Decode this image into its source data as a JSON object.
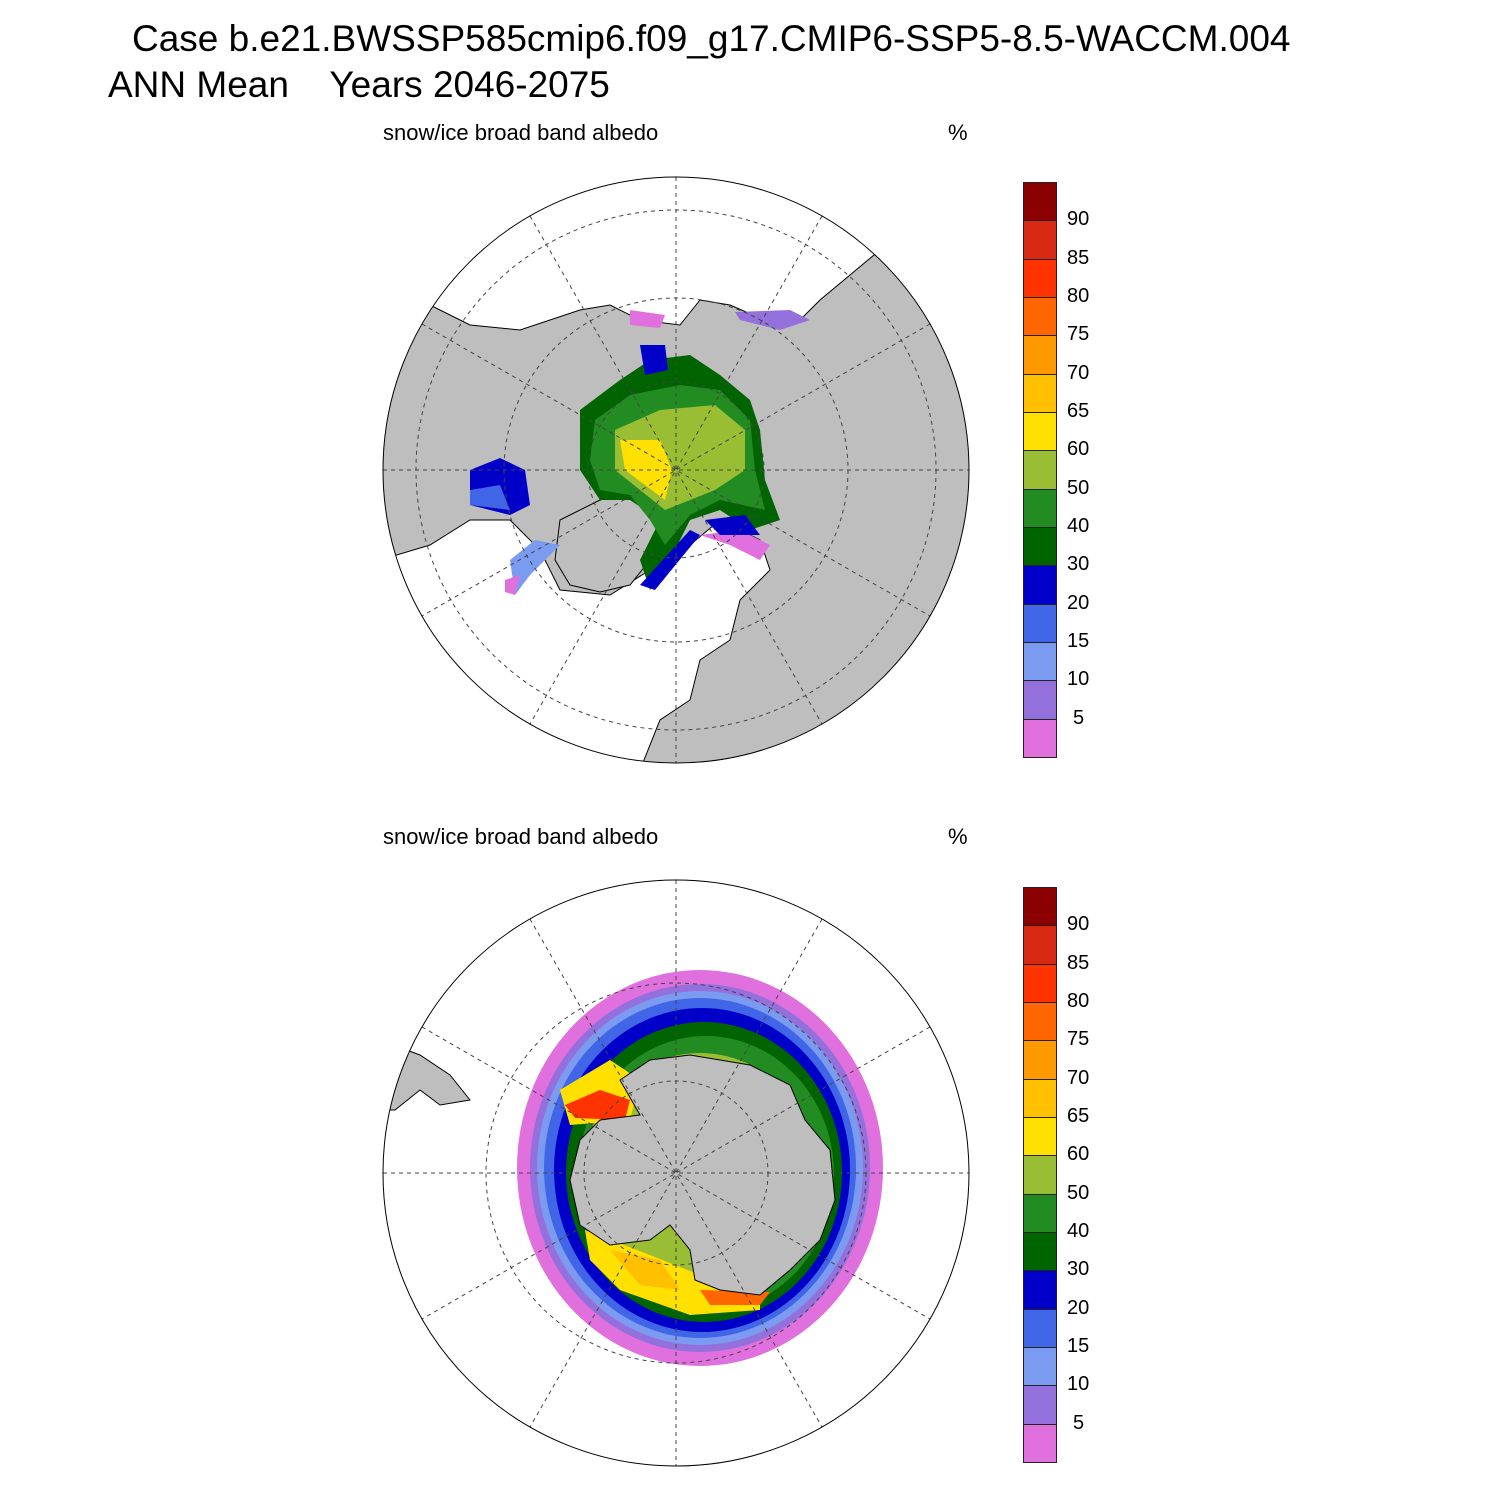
{
  "title": {
    "line1": "Case b.e21.BWSSP585cmip6.f09_g17.CMIP6-SSP5-8.5-WACCM.004",
    "line2": "ANN Mean    Years 2046-2075"
  },
  "panels": [
    {
      "name": "north",
      "variable": "snow/ice broad band albedo",
      "units": "%"
    },
    {
      "name": "south",
      "variable": "snow/ice broad band albedo",
      "units": "%"
    }
  ],
  "chart_data": {
    "type": "heatmap",
    "projection": "polar stereographic",
    "maps": [
      "Arctic (Northern Hemisphere)",
      "Antarctic (Southern Hemisphere)"
    ],
    "colorbar": {
      "labels": [
        "90",
        "85",
        "80",
        "75",
        "70",
        "65",
        "60",
        "50",
        "40",
        "30",
        "20",
        "15",
        "10",
        "5"
      ],
      "levels": [
        5,
        10,
        15,
        20,
        30,
        40,
        50,
        60,
        65,
        70,
        75,
        80,
        85,
        90
      ],
      "colors": [
        "#8B0000",
        "#D82811",
        "#FF3300",
        "#FF6600",
        "#FF9900",
        "#FFC000",
        "#FFE000",
        "#99BE33",
        "#228B22",
        "#006400",
        "#0000C8",
        "#4065E6",
        "#7B9BF0",
        "#9370DB",
        "#E070DE"
      ]
    },
    "land_color": "#BEBEBE"
  }
}
